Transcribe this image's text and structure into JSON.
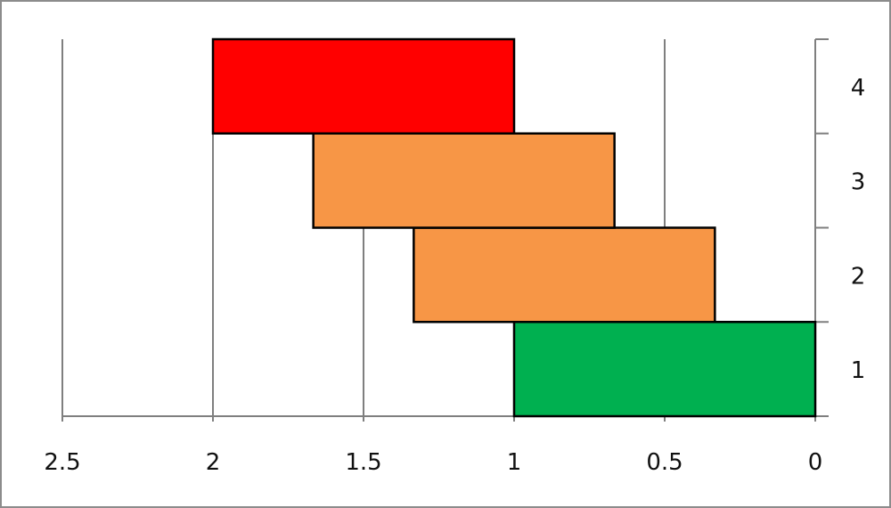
{
  "chart_data": {
    "type": "bar",
    "orientation": "horizontal",
    "stacked": true,
    "x_axis_reversed": true,
    "y_axis_position": "right",
    "xlim": [
      0,
      2.5
    ],
    "x_ticks": [
      2.5,
      2,
      1.5,
      1,
      0.5,
      0
    ],
    "x_tick_labels": [
      "2.5",
      "2",
      "1.5",
      "1",
      "0.5",
      "0"
    ],
    "categories": [
      "1",
      "2",
      "3",
      "4"
    ],
    "series": [
      {
        "values": [
          0,
          0.3333,
          0.6667,
          1.0
        ],
        "color": "none"
      },
      {
        "values": [
          1.0,
          1.0,
          1.0,
          1.0
        ],
        "colors": [
          "#00b050",
          "#f79646",
          "#f79646",
          "#ff0000"
        ]
      }
    ],
    "grid": "vertical",
    "legend": "none",
    "title": "",
    "xlabel": "",
    "ylabel": ""
  }
}
